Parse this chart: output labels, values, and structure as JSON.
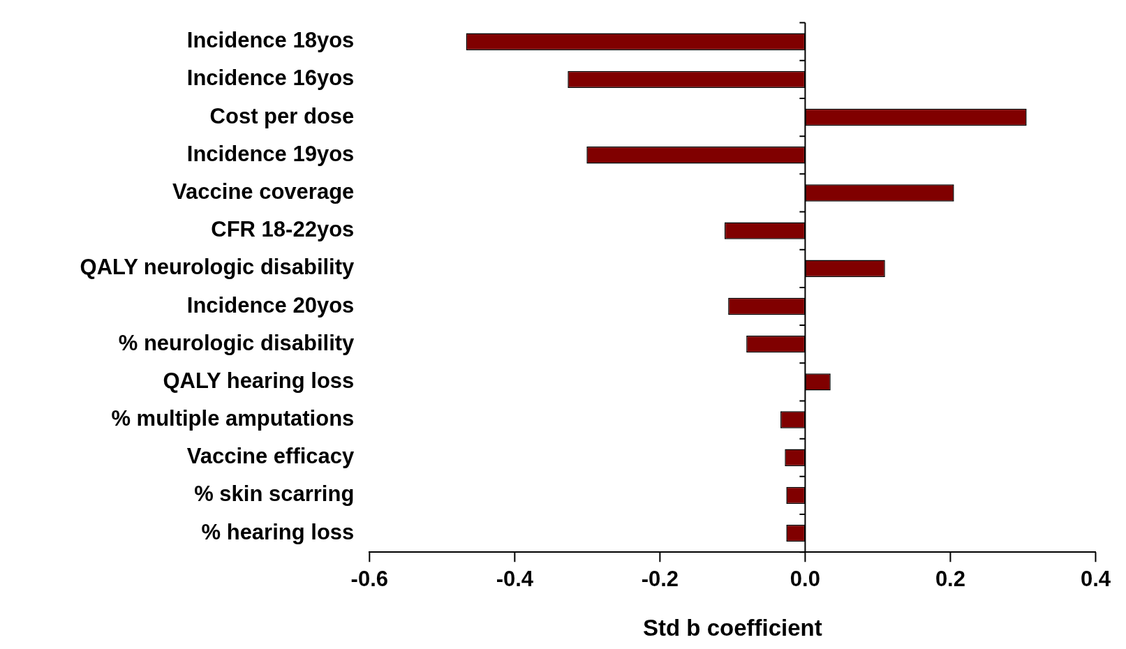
{
  "chart_data": {
    "type": "bar",
    "orientation": "horizontal",
    "xlabel": "Std b coefficient",
    "categories": [
      "Incidence 18yos",
      "Incidence 16yos",
      "Cost per dose",
      "Incidence 19yos",
      "Vaccine coverage",
      "CFR 18-22yos",
      "QALY neurologic disability",
      "Incidence 20yos",
      "% neurologic disability",
      "QALY hearing loss",
      "% multiple amputations",
      "Vaccine efficacy",
      "% skin scarring",
      "% hearing loss"
    ],
    "values": [
      -0.467,
      -0.327,
      0.305,
      -0.301,
      0.205,
      -0.111,
      0.11,
      -0.106,
      -0.081,
      0.035,
      -0.034,
      -0.028,
      -0.026,
      -0.026
    ],
    "color": "#800000",
    "xlim": [
      -0.6,
      0.4
    ],
    "xticks": [
      -0.6,
      -0.4,
      -0.2,
      {
        "value": 0,
        "label": "0.0"
      },
      0.2,
      0.4
    ],
    "legend": false
  }
}
